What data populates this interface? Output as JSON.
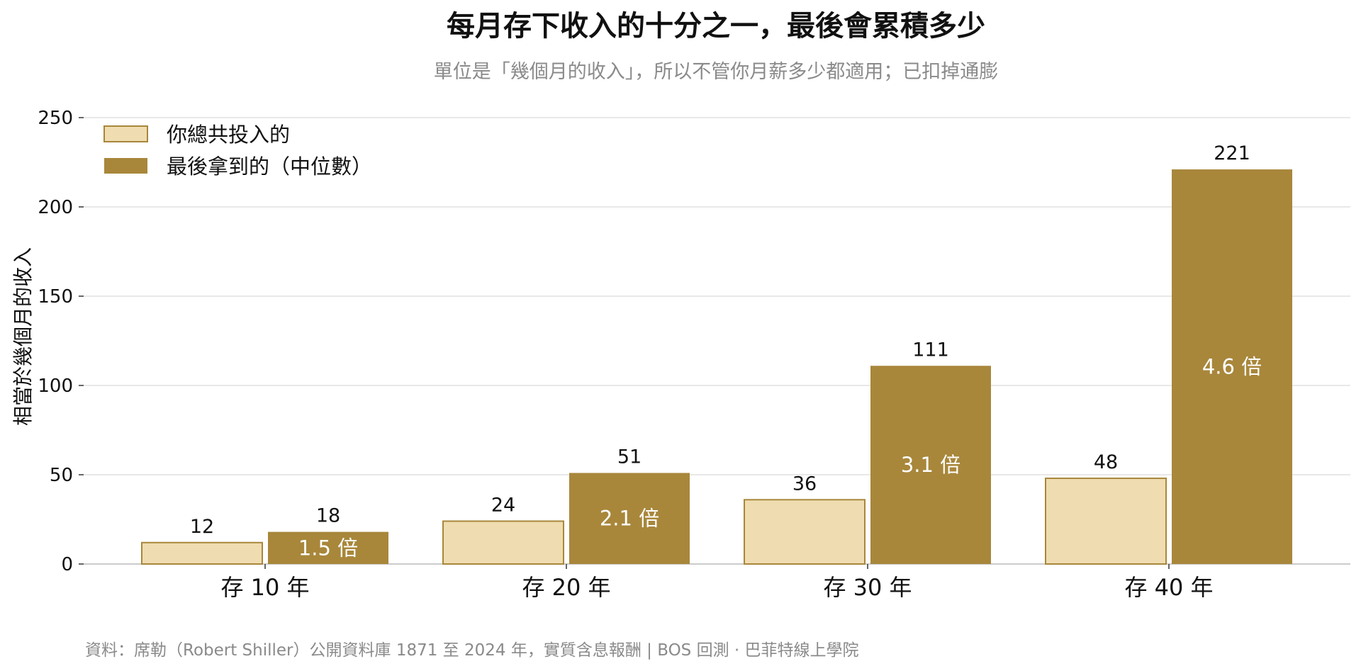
{
  "colors": {
    "invested_fill": "#efdcb0",
    "invested_stroke": "#a8873b",
    "received_fill": "#a8873b",
    "gridline": "#e0e0e0",
    "axis": "#bbbbbb"
  },
  "chart_data": {
    "type": "bar",
    "title": "每月存下收入的十分之一，最後會累積多少",
    "subtitle": "單位是「幾個月的收入」，所以不管你月薪多少都適用；已扣掉通膨",
    "ylabel": "相當於幾個月的收入",
    "xlabel": "",
    "ylim": [
      0,
      250
    ],
    "yticks": [
      0,
      50,
      100,
      150,
      200,
      250
    ],
    "grid": true,
    "legend_position": "top-left",
    "categories": [
      "存 10 年",
      "存 20 年",
      "存 30 年",
      "存 40 年"
    ],
    "series": [
      {
        "name": "你總共投入的",
        "values": [
          12,
          24,
          36,
          48
        ],
        "labels": [
          "12",
          "24",
          "36",
          "48"
        ]
      },
      {
        "name": "最後拿到的（中位數）",
        "values": [
          18,
          51,
          111,
          221
        ],
        "labels": [
          "18",
          "51",
          "111",
          "221"
        ]
      }
    ],
    "ratio_labels": [
      "1.5 倍",
      "2.1 倍",
      "3.1 倍",
      "4.6 倍"
    ],
    "source": "資料：席勒（Robert Shiller）公開資料庫 1871 至 2024 年，實質含息報酬 | BOS 回測 ·  巴菲特線上學院"
  }
}
